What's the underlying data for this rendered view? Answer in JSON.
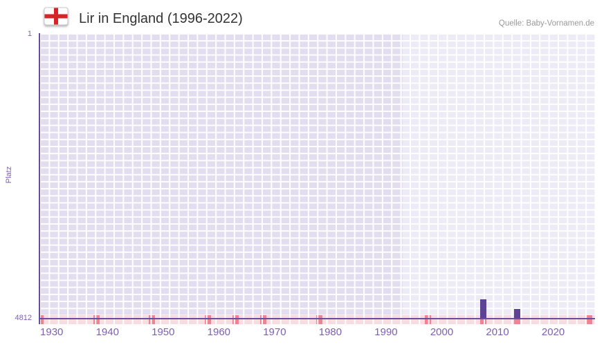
{
  "header": {
    "title": "Lir in England (1996-2022)",
    "source": "Quelle: Baby-Vornamen.de",
    "flag": "england-st-george-cross"
  },
  "chart_data": {
    "type": "bar",
    "title": "Lir in England (1996-2022)",
    "xlabel": "",
    "ylabel": "Platz",
    "grid": true,
    "legend": null,
    "y_axis": {
      "min": 1,
      "max": 4812,
      "inverted_rank_axis": true,
      "tick_labels": [
        "1",
        "4812"
      ]
    },
    "x_axis": {
      "min": 1927.8,
      "max": 2027.5,
      "ticks": [
        1930,
        1940,
        1950,
        1960,
        1970,
        1980,
        1990,
        2000,
        2010,
        2020
      ]
    },
    "highlight_from": 1993,
    "bars": [
      {
        "year": 2007,
        "rank": 4490
      },
      {
        "year": 2013,
        "rank": 4660
      }
    ],
    "heat_strip_marks": [
      1928,
      1938,
      1948,
      1958,
      1963,
      1968,
      1978,
      1997.5,
      2007.5,
      2013.5,
      2026.5
    ]
  },
  "colors": {
    "axis": "#6b4aa2",
    "tick_text": "#7d5fae",
    "grid_cell": "#e3deef",
    "grid_cell_highlight": "#edebf6",
    "bar": "#5e4296",
    "strip": "#f7dce2",
    "strip_mark": "#ec8593",
    "title_text": "#333333",
    "source_text": "#999999",
    "flag_red": "#d8232a"
  }
}
